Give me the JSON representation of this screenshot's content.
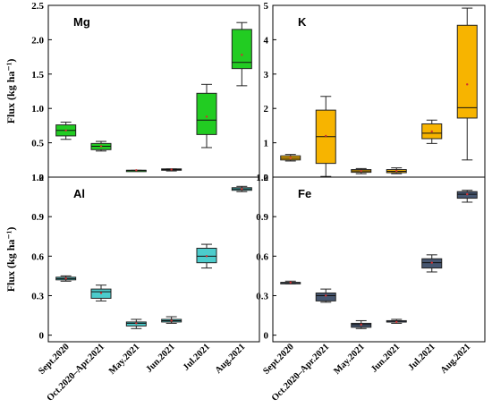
{
  "chart_data": [
    {
      "type": "box",
      "title": "Mg",
      "ylabel": "Flux (kg ha⁻¹)",
      "ylim": [
        0,
        2.5
      ],
      "yticks": [
        "0",
        "0.5",
        "1.0",
        "1.5",
        "2.0",
        "2.5"
      ],
      "categories": [
        "Sept.2020",
        "Oct.2020–Apr.2021",
        "May.2021",
        "Jun.2021",
        "Jul.2021",
        "Aug.2021"
      ],
      "color": "#22cc22",
      "boxes": [
        {
          "min": 0.55,
          "q1": 0.6,
          "median": 0.68,
          "q3": 0.76,
          "max": 0.8,
          "mean": 0.68
        },
        {
          "min": 0.38,
          "q1": 0.4,
          "median": 0.45,
          "q3": 0.49,
          "max": 0.52,
          "mean": 0.45
        },
        {
          "min": 0.09,
          "q1": 0.09,
          "median": 0.1,
          "q3": 0.1,
          "max": 0.1,
          "mean": 0.1
        },
        {
          "min": 0.09,
          "q1": 0.1,
          "median": 0.11,
          "q3": 0.12,
          "max": 0.12,
          "mean": 0.11
        },
        {
          "min": 0.43,
          "q1": 0.62,
          "median": 0.83,
          "q3": 1.22,
          "max": 1.35,
          "mean": 0.88
        },
        {
          "min": 1.33,
          "q1": 1.58,
          "median": 1.67,
          "q3": 2.15,
          "max": 2.25,
          "mean": 1.78
        }
      ]
    },
    {
      "type": "box",
      "title": "K",
      "ylabel": "",
      "ylim": [
        0,
        5
      ],
      "yticks": [
        "0",
        "1",
        "2",
        "3",
        "4",
        "5"
      ],
      "categories": [
        "Sept.2020",
        "Oct.2020–Apr.2021",
        "May.2021",
        "Jun.2021",
        "Jul.2021",
        "Aug.2021"
      ],
      "color": "#f7b400",
      "boxes": [
        {
          "min": 0.47,
          "q1": 0.5,
          "median": 0.55,
          "q3": 0.62,
          "max": 0.66,
          "mean": 0.56
        },
        {
          "min": 0.02,
          "q1": 0.4,
          "median": 1.18,
          "q3": 1.95,
          "max": 2.35,
          "mean": 1.2
        },
        {
          "min": 0.1,
          "q1": 0.14,
          "median": 0.18,
          "q3": 0.22,
          "max": 0.25,
          "mean": 0.18
        },
        {
          "min": 0.1,
          "q1": 0.13,
          "median": 0.17,
          "q3": 0.22,
          "max": 0.27,
          "mean": 0.18
        },
        {
          "min": 0.98,
          "q1": 1.12,
          "median": 1.28,
          "q3": 1.55,
          "max": 1.66,
          "mean": 1.33
        },
        {
          "min": 0.5,
          "q1": 1.72,
          "median": 2.02,
          "q3": 4.42,
          "max": 4.92,
          "mean": 2.7
        }
      ]
    },
    {
      "type": "box",
      "title": "Al",
      "ylabel": "Flux (kg ha⁻¹)",
      "ylim": [
        -0.05,
        1.2
      ],
      "yticks": [
        "0",
        "0.3",
        "0.6",
        "0.9",
        "1.2"
      ],
      "categories": [
        "Sept.2020",
        "Oct.2020–Apr.2021",
        "May.2021",
        "Jun.2021",
        "Jul.2021",
        "Aug.2021"
      ],
      "color": "#4ccccc",
      "boxes": [
        {
          "min": 0.41,
          "q1": 0.42,
          "median": 0.43,
          "q3": 0.44,
          "max": 0.45,
          "mean": 0.43
        },
        {
          "min": 0.26,
          "q1": 0.28,
          "median": 0.33,
          "q3": 0.35,
          "max": 0.38,
          "mean": 0.32
        },
        {
          "min": 0.05,
          "q1": 0.07,
          "median": 0.09,
          "q3": 0.1,
          "max": 0.12,
          "mean": 0.09
        },
        {
          "min": 0.09,
          "q1": 0.1,
          "median": 0.11,
          "q3": 0.12,
          "max": 0.14,
          "mean": 0.11
        },
        {
          "min": 0.51,
          "q1": 0.55,
          "median": 0.6,
          "q3": 0.66,
          "max": 0.69,
          "mean": 0.6
        },
        {
          "min": 1.09,
          "q1": 1.1,
          "median": 1.11,
          "q3": 1.12,
          "max": 1.13,
          "mean": 1.11
        }
      ]
    },
    {
      "type": "box",
      "title": "Fe",
      "ylabel": "",
      "ylim": [
        -0.05,
        1.2
      ],
      "yticks": [
        "0",
        "0.3",
        "0.6",
        "0.9",
        "1.2"
      ],
      "categories": [
        "Sept.2020",
        "Oct.2020–Apr.2021",
        "May.2021",
        "Jun.2021",
        "Jul.2021",
        "Aug.2021"
      ],
      "color": "#465670",
      "boxes": [
        {
          "min": 0.39,
          "q1": 0.39,
          "median": 0.4,
          "q3": 0.4,
          "max": 0.41,
          "mean": 0.4
        },
        {
          "min": 0.25,
          "q1": 0.26,
          "median": 0.3,
          "q3": 0.32,
          "max": 0.35,
          "mean": 0.3
        },
        {
          "min": 0.05,
          "q1": 0.06,
          "median": 0.08,
          "q3": 0.09,
          "max": 0.11,
          "mean": 0.08
        },
        {
          "min": 0.09,
          "q1": 0.1,
          "median": 0.1,
          "q3": 0.11,
          "max": 0.12,
          "mean": 0.1
        },
        {
          "min": 0.48,
          "q1": 0.51,
          "median": 0.55,
          "q3": 0.58,
          "max": 0.61,
          "mean": 0.55
        },
        {
          "min": 1.01,
          "q1": 1.04,
          "median": 1.07,
          "q3": 1.09,
          "max": 1.1,
          "mean": 1.07
        }
      ]
    }
  ]
}
